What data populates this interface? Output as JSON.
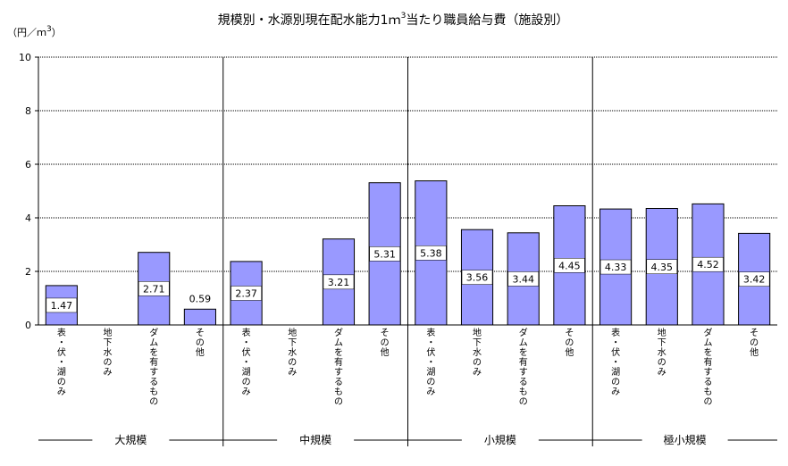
{
  "chart_data": {
    "type": "bar",
    "title": "規模別・水源別現在配水能力1ｍ",
    "title_superscript": "3",
    "title_suffix": "当たり職員給与費（施設別）",
    "ylabel": "（円／ｍ",
    "ylabel_superscript": "3",
    "ylabel_suffix": "）",
    "ylim": [
      0,
      10
    ],
    "yticks": [
      "0",
      "2",
      "4",
      "6",
      "8",
      "10"
    ],
    "grid": true,
    "groups": [
      {
        "name": "大規模",
        "categories": [
          "表・伏・湖のみ",
          "地下水のみ",
          "ダムを有するもの",
          "その他"
        ],
        "values": [
          1.47,
          null,
          2.71,
          0.59
        ],
        "labels": [
          "1.47",
          "",
          "2.71",
          "0.59"
        ]
      },
      {
        "name": "中規模",
        "categories": [
          "表・伏・湖のみ",
          "地下水のみ",
          "ダムを有するもの",
          "その他"
        ],
        "values": [
          2.37,
          null,
          3.21,
          5.31
        ],
        "labels": [
          "2.37",
          "",
          "3.21",
          "5.31"
        ]
      },
      {
        "name": "小規模",
        "categories": [
          "表・伏・湖のみ",
          "地下水のみ",
          "ダムを有するもの",
          "その他"
        ],
        "values": [
          5.38,
          3.56,
          3.44,
          4.45
        ],
        "labels": [
          "5.38",
          "3.56",
          "3.44",
          "4.45"
        ]
      },
      {
        "name": "極小規模",
        "categories": [
          "表・伏・湖のみ",
          "地下水のみ",
          "ダムを有するもの",
          "その他"
        ],
        "values": [
          4.33,
          4.35,
          4.52,
          3.42
        ],
        "labels": [
          "4.33",
          "4.35",
          "4.52",
          "3.42"
        ]
      }
    ],
    "colors": {
      "bar_fill": "#9999ff",
      "bar_stroke": "#000000",
      "grid": "#000000"
    }
  }
}
